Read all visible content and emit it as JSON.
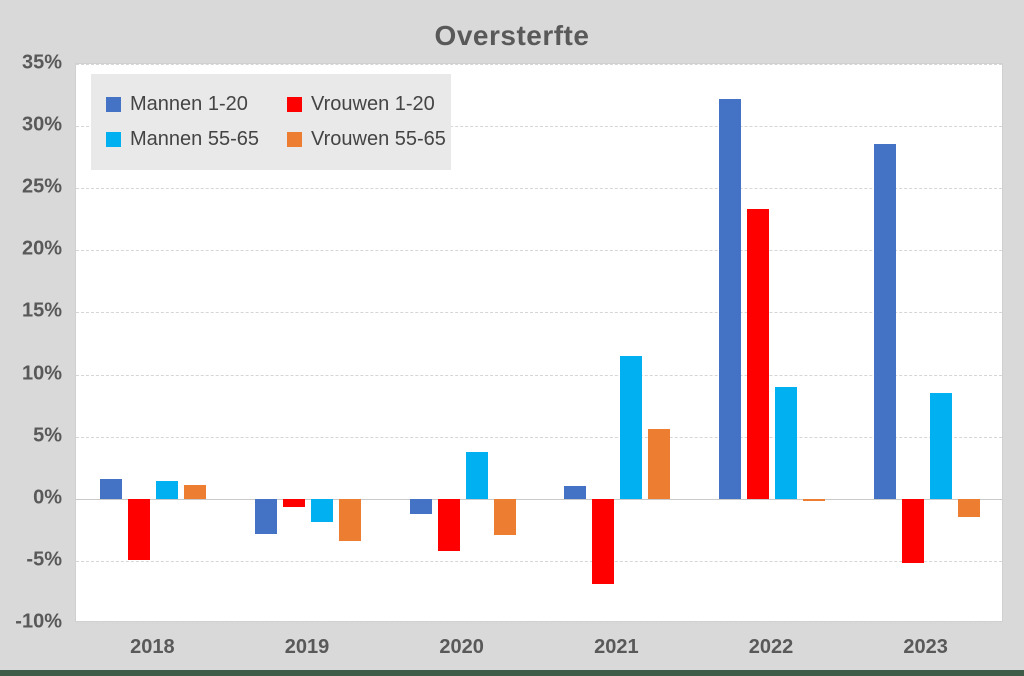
{
  "title": "Oversterfte",
  "accent_strip_color": "#3e5c48",
  "background_color": "#d9d9d9",
  "plot_background_color": "#ffffff",
  "text_color": "#595959",
  "chart_data": {
    "type": "bar",
    "title": "Oversterfte",
    "categories": [
      "2018",
      "2019",
      "2020",
      "2021",
      "2022",
      "2023"
    ],
    "series": [
      {
        "name": "Mannen 1-20",
        "color": "#4472c4",
        "values": [
          1.6,
          -2.8,
          -1.2,
          1.0,
          32.2,
          28.6
        ]
      },
      {
        "name": "Vrouwen 1-20",
        "color": "#fe0000",
        "values": [
          -4.9,
          -0.7,
          -4.2,
          -6.9,
          23.3,
          -5.2
        ]
      },
      {
        "name": "Mannen 55-65",
        "color": "#00b0f0",
        "values": [
          1.4,
          -1.9,
          3.8,
          11.5,
          9.0,
          8.5
        ]
      },
      {
        "name": "Vrouwen 55-65",
        "color": "#ed7d31",
        "values": [
          1.1,
          -3.4,
          -2.9,
          5.6,
          -0.1,
          -1.5
        ]
      }
    ],
    "y_ticks": [
      {
        "label": "35%",
        "value": 35
      },
      {
        "label": "30%",
        "value": 30
      },
      {
        "label": "25%",
        "value": 25
      },
      {
        "label": "20%",
        "value": 20
      },
      {
        "label": "15%",
        "value": 15
      },
      {
        "label": "10%",
        "value": 10
      },
      {
        "label": "5%",
        "value": 5
      },
      {
        "label": "0%",
        "value": 0
      },
      {
        "label": "-5%",
        "value": -5
      },
      {
        "label": "-10%",
        "value": -10
      }
    ],
    "ylim": [
      -10,
      35
    ],
    "xlabel": "",
    "ylabel": "",
    "grid": true,
    "legend_position": "top-left",
    "legend_rows": [
      [
        0,
        1
      ],
      [
        2,
        3
      ]
    ]
  }
}
